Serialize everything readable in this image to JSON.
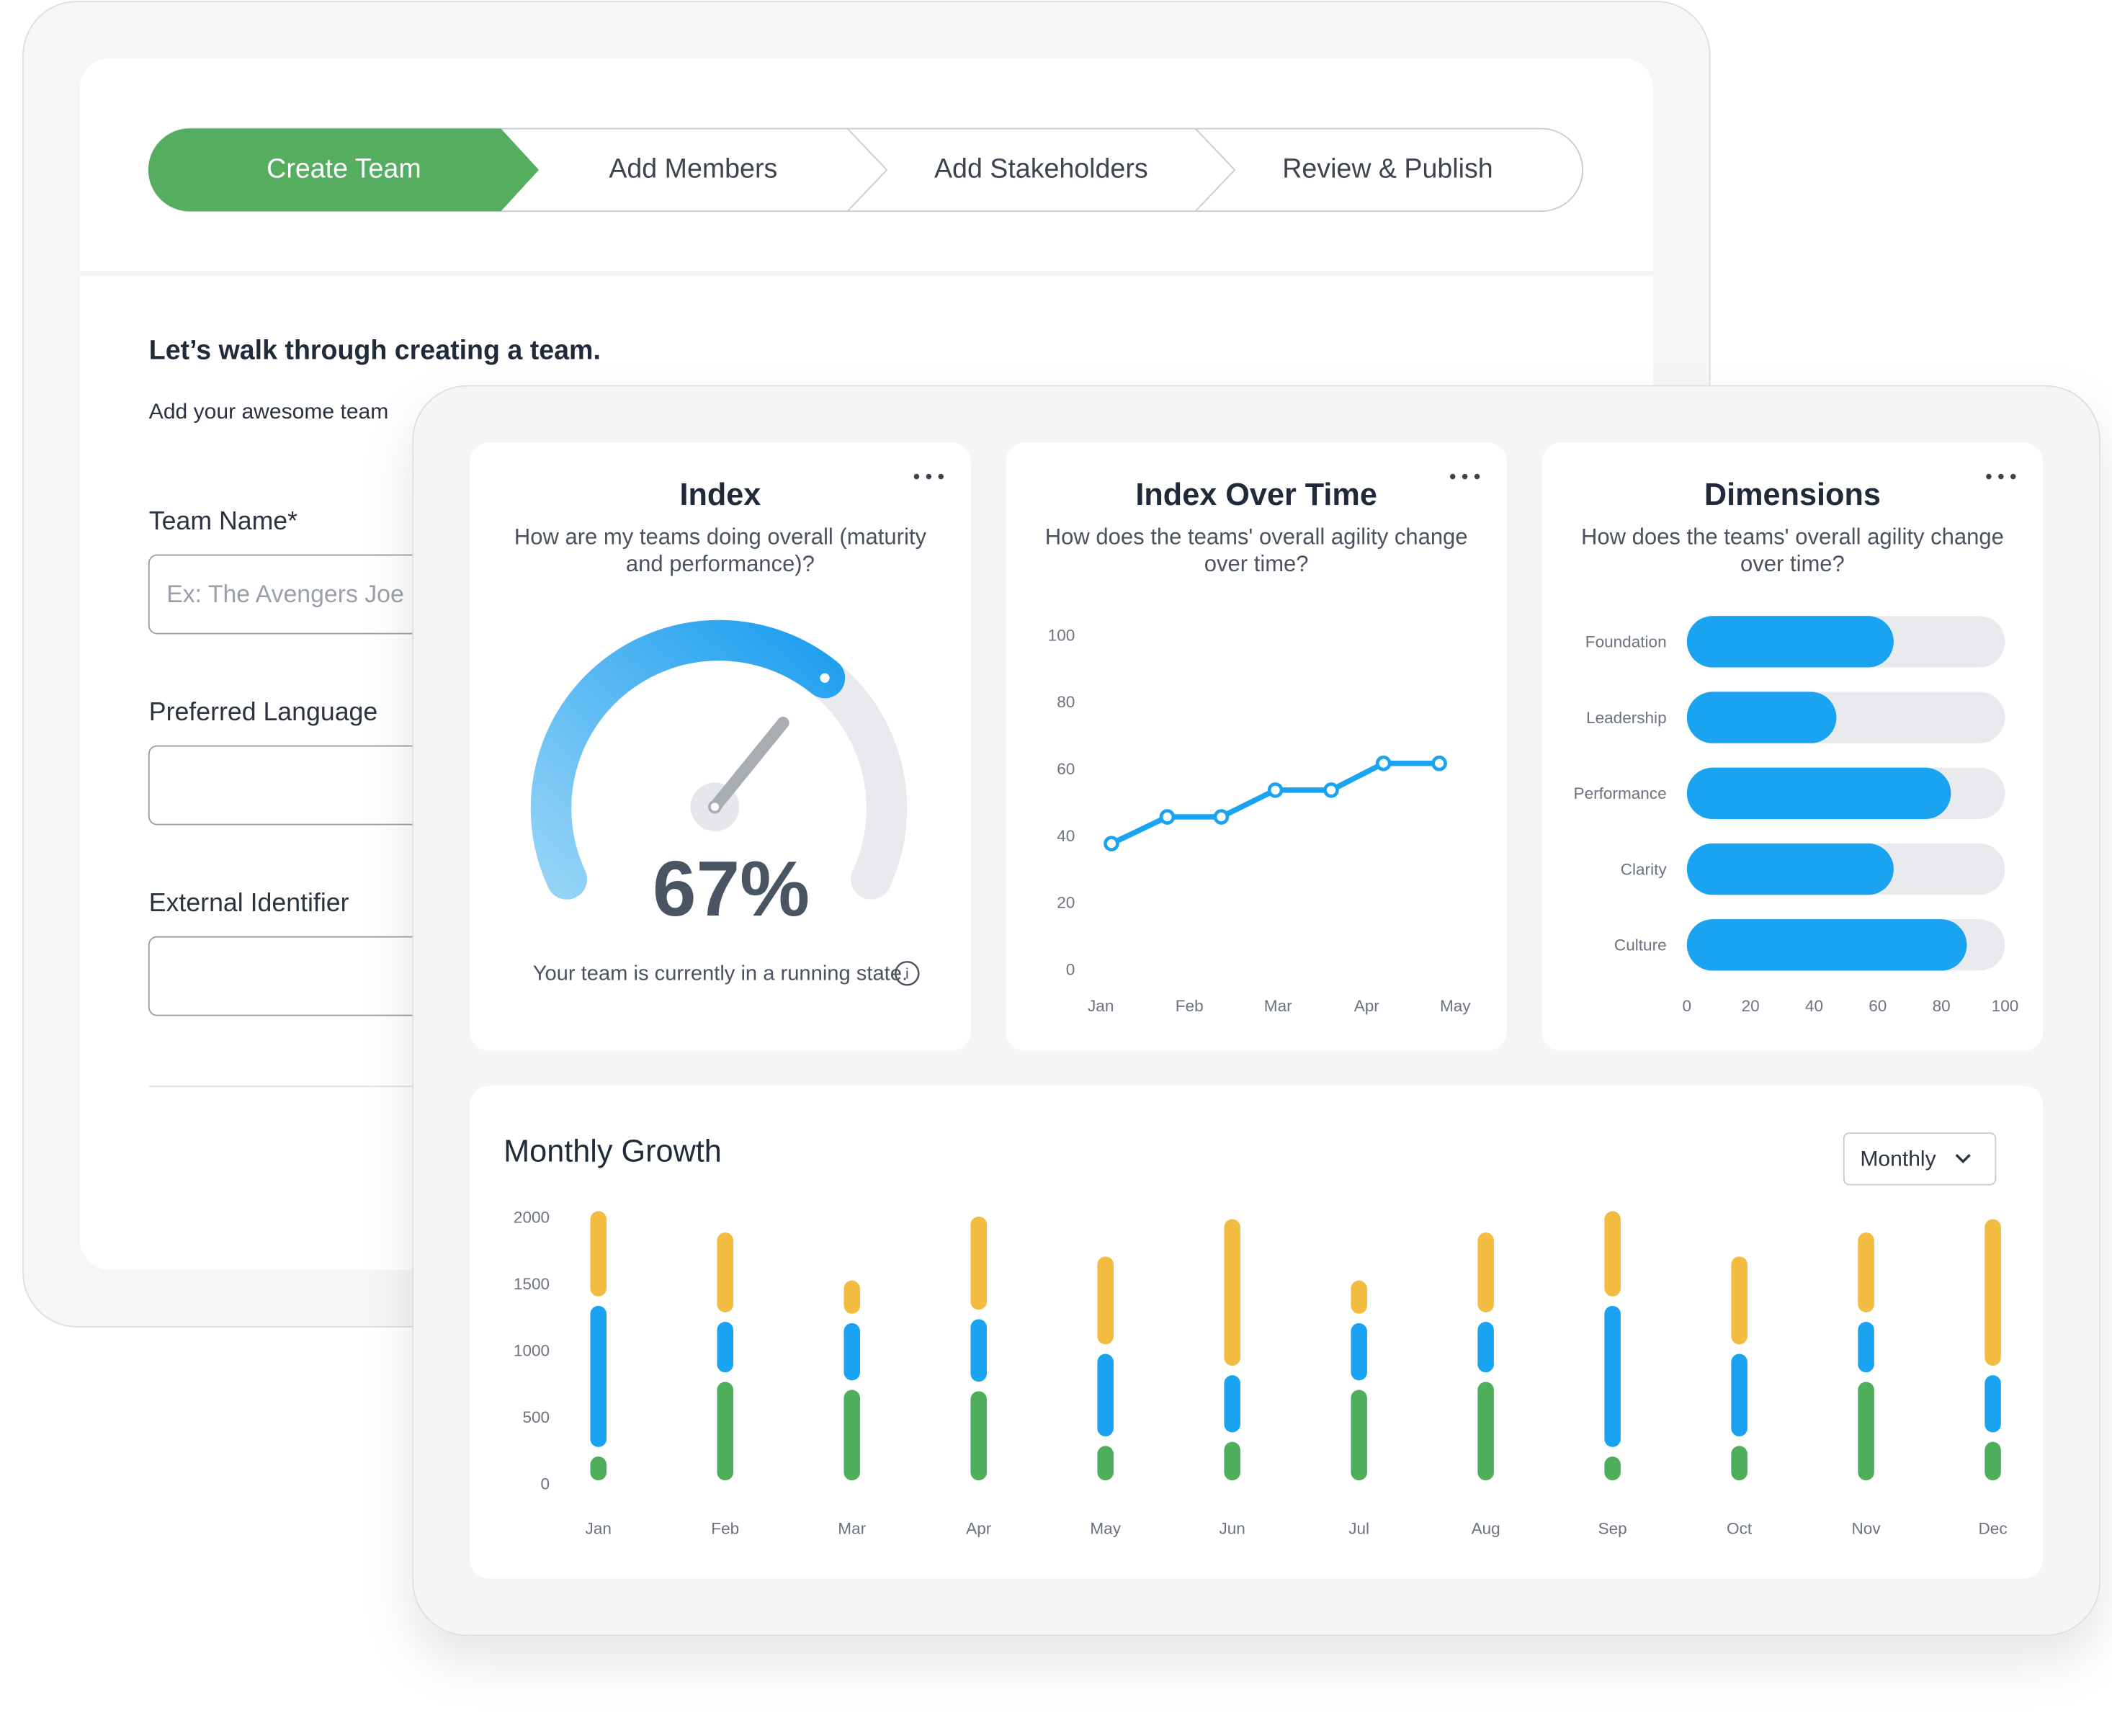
{
  "form": {
    "steps": [
      "Create Team",
      "Add Members",
      "Add Stakeholders",
      "Review & Publish"
    ],
    "heading": "Let’s walk through creating a team.",
    "subheading": "Add your awesome team",
    "fields": [
      {
        "label": "Team Name*",
        "placeholder": "Ex: The Avengers Joe"
      },
      {
        "label": "Preferred Language"
      },
      {
        "label": "External Identifier"
      }
    ]
  },
  "chart_data": [
    {
      "type": "gauge",
      "title": "Index",
      "subtitle": "How are my teams doing overall (maturity and performance)?",
      "values": [
        67
      ],
      "value_labels": [
        "67%"
      ],
      "ylim": [
        0,
        100
      ],
      "color": "#1e9ef0",
      "caption": "Your team is currently in a running state."
    },
    {
      "type": "line",
      "title": "Index Over Time",
      "subtitle": "How does the teams' overall agility change over time?",
      "x": [
        0.12,
        0.75,
        1.36,
        1.97,
        2.6,
        3.19,
        3.82
      ],
      "values": [
        38,
        46,
        46,
        54,
        54,
        62,
        62
      ],
      "color": "#1aa3f0",
      "xlim": [
        -0.2,
        4.2
      ],
      "xticks": [
        {
          "value": 0,
          "label": "Jan"
        },
        {
          "value": 1,
          "label": "Feb"
        },
        {
          "value": 2,
          "label": "Mar"
        },
        {
          "value": 3,
          "label": "Apr"
        },
        {
          "value": 4,
          "label": "May"
        }
      ],
      "ylim": [
        0,
        100
      ],
      "yticks": [
        0,
        20,
        40,
        60,
        80,
        100
      ],
      "grid": false
    },
    {
      "type": "hbar",
      "title": "Dimensions",
      "subtitle": "How does the teams' overall agility change over time?",
      "categories": [
        "Foundation",
        "Leadership",
        "Performance",
        "Clarity",
        "Culture"
      ],
      "values": [
        65,
        47,
        83,
        65,
        88
      ],
      "color": "#1aa3f0",
      "track_color": "#e8eaee",
      "xlim": [
        0,
        100
      ],
      "xticks": [
        0,
        20,
        40,
        60,
        80,
        100
      ]
    },
    {
      "type": "stacked_bar",
      "title": "Monthly Growth",
      "dropdown": "Monthly",
      "categories": [
        "Jan",
        "Feb",
        "Mar",
        "Apr",
        "May",
        "Jun",
        "Jul",
        "Aug",
        "Sep",
        "Oct",
        "Nov",
        "Dec"
      ],
      "series": [
        {
          "color": "#4fae5a",
          "values": [
            250,
            810,
            750,
            740,
            330,
            360,
            750,
            810,
            250,
            330,
            810,
            360
          ]
        },
        {
          "color": "#1aa3f0",
          "values": [
            1130,
            450,
            500,
            540,
            690,
            500,
            500,
            450,
            1130,
            690,
            450,
            500
          ]
        },
        {
          "color": "#f2bc41",
          "values": [
            710,
            670,
            320,
            770,
            730,
            1170,
            320,
            670,
            710,
            730,
            670,
            1170
          ]
        }
      ],
      "ylim": [
        0,
        2000
      ],
      "yticks": [
        0,
        500,
        1000,
        1500,
        2000
      ],
      "grid": false
    }
  ]
}
